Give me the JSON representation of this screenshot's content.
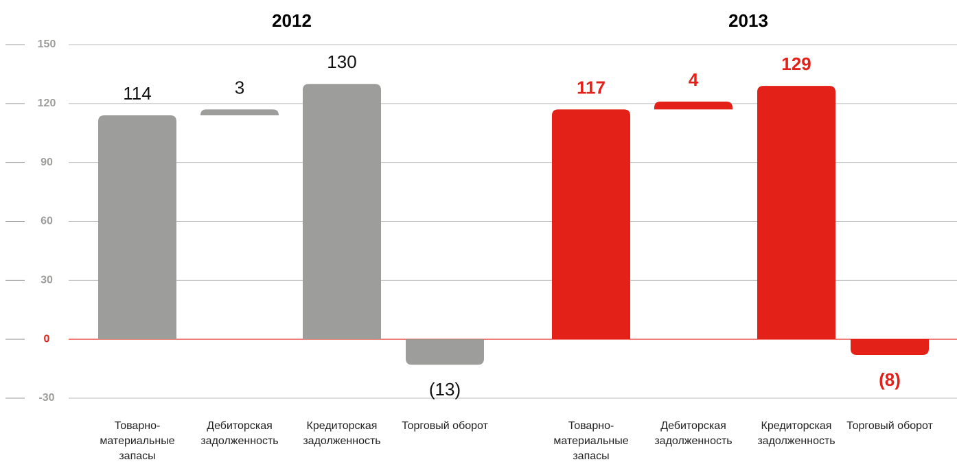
{
  "chart_data": {
    "type": "waterfall",
    "categories": [
      "Товарно-материальные запасы",
      "Дебиторская задолженность",
      "Кредиторская задолженность",
      "Торговый оборот"
    ],
    "ylim": [
      -30,
      150
    ],
    "yticks": [
      -30,
      0,
      30,
      60,
      90,
      120,
      150
    ],
    "grid": true,
    "groups": [
      {
        "title": "2012",
        "color": "#9d9d9c",
        "values": [
          114,
          3,
          130,
          -13
        ],
        "value_labels": [
          "114",
          "3",
          "130",
          "(13)"
        ]
      },
      {
        "title": "2013",
        "color": "#e32119",
        "values": [
          117,
          4,
          129,
          -8
        ],
        "value_labels": [
          "117",
          "4",
          "129",
          "(8)"
        ]
      }
    ]
  }
}
